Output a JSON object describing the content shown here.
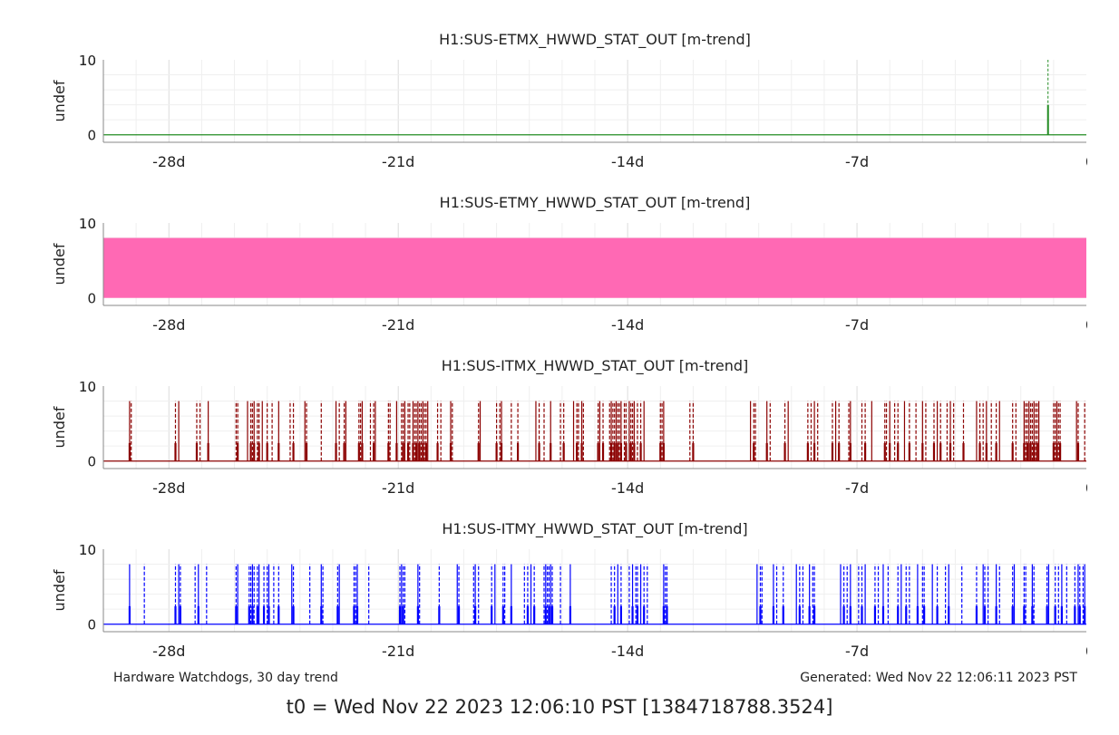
{
  "figure": {
    "footer_left": "Hardware Watchdogs, 30 day trend",
    "footer_right": "Generated: Wed Nov 22 12:06:11 2023 PST",
    "t0_label": "t0 = Wed Nov 22 2023 12:06:10 PST [1384718788.3524]"
  },
  "chart_data": [
    {
      "type": "line",
      "title": "H1:SUS-ETMX_HWWD_STAT_OUT [m-trend]",
      "ylabel": "undef",
      "xlim_days": [
        -30,
        0
      ],
      "ylim": [
        -1,
        10
      ],
      "x_ticks": [
        -28,
        -21,
        -14,
        -7,
        0
      ],
      "x_tick_labels": [
        "-28d",
        "-21d",
        "-14d",
        "-7d",
        "0"
      ],
      "y_ticks": [
        0,
        10
      ],
      "y_tick_labels": [
        "0",
        "10"
      ],
      "grid": true,
      "color": "#228b22",
      "baseline": 0,
      "spikes": [
        {
          "x": -1.17,
          "max": 10,
          "mean": 4
        }
      ]
    },
    {
      "type": "area",
      "title": "H1:SUS-ETMY_HWWD_STAT_OUT [m-trend]",
      "ylabel": "undef",
      "xlim_days": [
        -30,
        0
      ],
      "ylim": [
        -1,
        10
      ],
      "x_ticks": [
        -28,
        -21,
        -14,
        -7,
        0
      ],
      "x_tick_labels": [
        "-28d",
        "-21d",
        "-14d",
        "-7d",
        "0"
      ],
      "y_ticks": [
        0,
        10
      ],
      "y_tick_labels": [
        "0",
        "10"
      ],
      "grid": true,
      "color": "#ff69b4",
      "band": {
        "low": 0,
        "high": 8
      }
    },
    {
      "type": "line",
      "title": "H1:SUS-ITMX_HWWD_STAT_OUT [m-trend]",
      "ylabel": "undef",
      "xlim_days": [
        -30,
        0
      ],
      "ylim": [
        -1,
        10
      ],
      "x_ticks": [
        -28,
        -21,
        -14,
        -7,
        0
      ],
      "x_tick_labels": [
        "-28d",
        "-21d",
        "-14d",
        "-7d",
        "0"
      ],
      "y_ticks": [
        0,
        10
      ],
      "y_tick_labels": [
        "0",
        "10"
      ],
      "grid": true,
      "color": "#8b0000",
      "baseline": 0,
      "spike_max": 8,
      "spike_times": [
        -29.2,
        -29.15,
        -27.8,
        -27.7,
        -27.15,
        -27.05,
        -26.8,
        -25.95,
        -25.9,
        -25.6,
        -25.5,
        -25.45,
        -25.4,
        -25.3,
        -25.25,
        -25.15,
        -25.0,
        -24.85,
        -24.65,
        -24.3,
        -24.2,
        -23.85,
        -23.8,
        -23.35,
        -22.9,
        -22.8,
        -22.65,
        -22.6,
        -22.2,
        -22.15,
        -22.1,
        -21.85,
        -21.75,
        -21.7,
        -21.3,
        -21.25,
        -21.05,
        -20.9,
        -20.85,
        -20.8,
        -20.7,
        -20.65,
        -20.55,
        -20.5,
        -20.45,
        -20.4,
        -20.35,
        -20.3,
        -20.25,
        -20.2,
        -20.15,
        -20.1,
        -19.8,
        -19.7,
        -19.4,
        -19.35,
        -18.55,
        -18.5,
        -18.0,
        -17.9,
        -17.85,
        -17.55,
        -17.35,
        -16.8,
        -16.7,
        -16.55,
        -16.35,
        -16.05,
        -15.95,
        -15.65,
        -15.55,
        -15.5,
        -15.4,
        -15.35,
        -14.9,
        -14.85,
        -14.75,
        -14.55,
        -14.5,
        -14.45,
        -14.4,
        -14.35,
        -14.3,
        -14.25,
        -14.2,
        -14.1,
        -14.05,
        -13.95,
        -13.9,
        -13.85,
        -13.8,
        -13.7,
        -13.6,
        -13.5,
        -13.0,
        -12.95,
        -12.9,
        -12.1,
        -12.0,
        -10.25,
        -10.15,
        -10.1,
        -9.75,
        -9.65,
        -9.2,
        -9.1,
        -8.5,
        -8.4,
        -8.3,
        -8.2,
        -7.75,
        -7.65,
        -7.55,
        -7.25,
        -7.2,
        -6.85,
        -6.75,
        -6.55,
        -6.15,
        -6.1,
        -6.0,
        -5.85,
        -5.75,
        -5.55,
        -5.4,
        -5.2,
        -5.0,
        -4.9,
        -4.65,
        -4.55,
        -4.45,
        -4.25,
        -4.15,
        -4.05,
        -3.75,
        -3.35,
        -3.25,
        -3.15,
        -3.05,
        -2.9,
        -2.75,
        -2.65,
        -2.25,
        -2.15,
        -1.9,
        -1.85,
        -1.8,
        -1.75,
        -1.7,
        -1.65,
        -1.6,
        -1.55,
        -1.5,
        -1.45,
        -1.0,
        -0.95,
        -0.9,
        -0.85,
        -0.8,
        -0.3,
        -0.25,
        -0.05
      ]
    },
    {
      "type": "line",
      "title": "H1:SUS-ITMY_HWWD_STAT_OUT [m-trend]",
      "ylabel": "undef",
      "xlim_days": [
        -30,
        0
      ],
      "ylim": [
        -1,
        10
      ],
      "x_ticks": [
        -28,
        -21,
        -14,
        -7,
        0
      ],
      "x_tick_labels": [
        "-28d",
        "-21d",
        "-14d",
        "-7d",
        "0"
      ],
      "y_ticks": [
        0,
        10
      ],
      "y_tick_labels": [
        "0",
        "10"
      ],
      "grid": true,
      "color": "#0000ff",
      "baseline": 0,
      "spike_max": 8,
      "spike_times": [
        -29.2,
        -28.75,
        -27.8,
        -27.7,
        -27.65,
        -27.2,
        -27.1,
        -26.85,
        -25.95,
        -25.9,
        -25.55,
        -25.5,
        -25.45,
        -25.4,
        -25.3,
        -25.25,
        -25.1,
        -25.0,
        -24.95,
        -24.8,
        -24.65,
        -24.25,
        -24.2,
        -23.7,
        -23.35,
        -23.3,
        -22.85,
        -22.8,
        -22.35,
        -22.3,
        -22.25,
        -21.9,
        -20.95,
        -20.9,
        -20.85,
        -20.8,
        -20.4,
        -20.35,
        -19.75,
        -19.2,
        -19.15,
        -18.7,
        -18.65,
        -18.55,
        -18.15,
        -18.05,
        -17.8,
        -17.75,
        -17.55,
        -17.15,
        -17.05,
        -16.95,
        -16.85,
        -16.55,
        -16.5,
        -16.45,
        -16.4,
        -16.35,
        -16.3,
        -16.05,
        -15.75,
        -14.5,
        -14.4,
        -14.3,
        -14.2,
        -13.95,
        -13.85,
        -13.75,
        -13.7,
        -13.6,
        -13.5,
        -13.4,
        -12.9,
        -12.85,
        -12.8,
        -10.05,
        -9.95,
        -9.9,
        -9.55,
        -9.45,
        -9.25,
        -8.85,
        -8.75,
        -8.65,
        -8.45,
        -8.35,
        -8.3,
        -7.5,
        -7.4,
        -7.3,
        -7.2,
        -6.95,
        -6.85,
        -6.75,
        -6.45,
        -6.35,
        -6.2,
        -6.05,
        -5.75,
        -5.65,
        -5.5,
        -5.4,
        -5.15,
        -5.0,
        -4.95,
        -4.7,
        -4.55,
        -4.3,
        -4.2,
        -3.8,
        -3.35,
        -3.15,
        -3.1,
        -3.0,
        -2.75,
        -2.65,
        -2.25,
        -2.2,
        -1.9,
        -1.85,
        -1.65,
        -1.6,
        -1.2,
        -1.15,
        -0.95,
        -0.85,
        -0.75,
        -0.6,
        -0.35,
        -0.25,
        -0.2,
        -0.1,
        -0.05
      ]
    }
  ]
}
